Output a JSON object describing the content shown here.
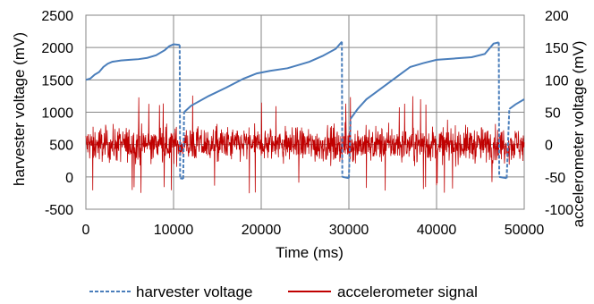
{
  "chart_data": {
    "type": "line",
    "xlabel": "Time (ms)",
    "ylabel": "harvester voltage (mV)",
    "y2label": "accelerometer voltage (mV)",
    "xlim": [
      0,
      50000
    ],
    "ylim": [
      -500,
      2500
    ],
    "y2lim": [
      -100,
      200
    ],
    "x_ticks": [
      "0",
      "10000",
      "20000",
      "30000",
      "40000",
      "50000"
    ],
    "y_ticks": [
      "-500",
      "0",
      "500",
      "1000",
      "1500",
      "2000",
      "2500"
    ],
    "y2_ticks": [
      "-100",
      "-50",
      "0",
      "50",
      "100",
      "150",
      "200"
    ],
    "grid": "on",
    "legend_position": "bottom",
    "series": [
      {
        "name": "harvester voltage",
        "axis": "left",
        "color": "#4a7ebb",
        "style": "solid-with-dashed-drops",
        "points": [
          [
            0,
            1500
          ],
          [
            500,
            1520
          ],
          [
            1000,
            1580
          ],
          [
            1500,
            1620
          ],
          [
            2000,
            1700
          ],
          [
            2500,
            1750
          ],
          [
            3000,
            1780
          ],
          [
            4000,
            1800
          ],
          [
            5000,
            1810
          ],
          [
            6000,
            1820
          ],
          [
            7000,
            1840
          ],
          [
            8000,
            1880
          ],
          [
            9000,
            1960
          ],
          [
            9500,
            2020
          ],
          [
            10000,
            2050
          ],
          [
            10700,
            2040
          ],
          [
            10750,
            -20
          ],
          [
            11100,
            -30
          ],
          [
            11200,
            1000
          ],
          [
            12000,
            1100
          ],
          [
            14000,
            1250
          ],
          [
            16000,
            1380
          ],
          [
            18000,
            1520
          ],
          [
            19500,
            1600
          ],
          [
            21000,
            1640
          ],
          [
            23000,
            1680
          ],
          [
            24000,
            1720
          ],
          [
            25500,
            1780
          ],
          [
            27000,
            1870
          ],
          [
            28500,
            1980
          ],
          [
            29200,
            2090
          ],
          [
            29250,
            0
          ],
          [
            30000,
            -20
          ],
          [
            30200,
            900
          ],
          [
            31000,
            1050
          ],
          [
            32000,
            1200
          ],
          [
            33000,
            1300
          ],
          [
            34500,
            1450
          ],
          [
            36000,
            1600
          ],
          [
            37000,
            1700
          ],
          [
            38500,
            1760
          ],
          [
            40000,
            1810
          ],
          [
            42000,
            1830
          ],
          [
            44000,
            1850
          ],
          [
            45500,
            1900
          ],
          [
            46500,
            2060
          ],
          [
            47100,
            2080
          ],
          [
            47150,
            0
          ],
          [
            48000,
            -20
          ],
          [
            48300,
            1050
          ],
          [
            49000,
            1120
          ],
          [
            50000,
            1200
          ]
        ]
      },
      {
        "name": "accelerometer signal",
        "axis": "right",
        "color": "#c00000",
        "style": "noise",
        "center": 0,
        "typical_amplitude": 35,
        "peak_amplitude": 70
      }
    ]
  }
}
